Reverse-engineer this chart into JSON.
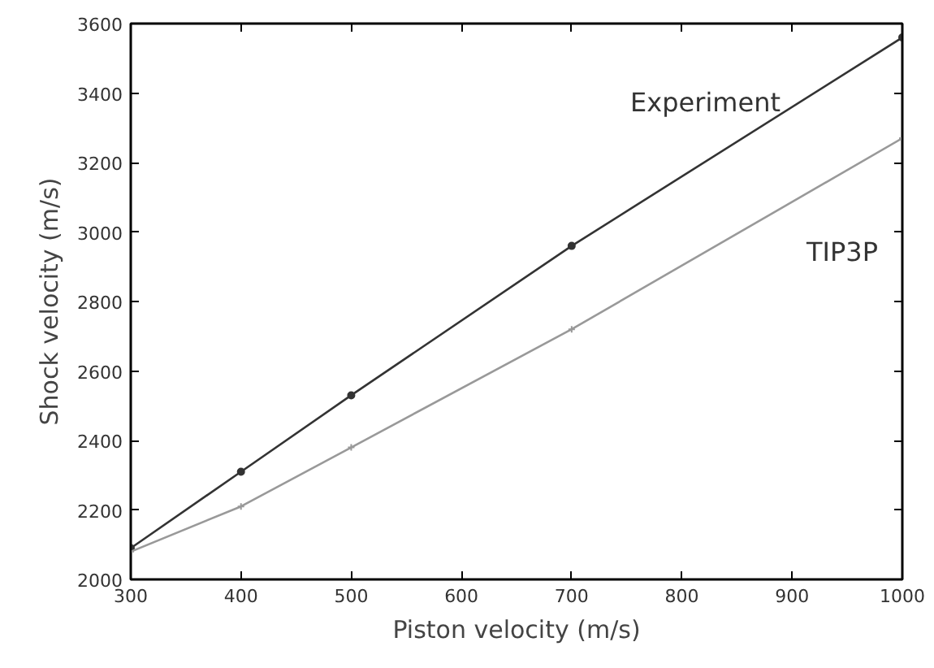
{
  "chart_data": {
    "type": "line",
    "xlabel": "Piston velocity (m/s)",
    "ylabel": "Shock velocity (m/s)",
    "x": [
      300,
      400,
      500,
      700,
      1000
    ],
    "series": [
      {
        "name": "Experiment",
        "color": "#333333",
        "marker": "circle",
        "values": [
          2090,
          2310,
          2530,
          2960,
          3560
        ]
      },
      {
        "name": "TIP3P",
        "color": "#999999",
        "marker": "cross",
        "values": [
          2080,
          2210,
          2380,
          2720,
          3270
        ]
      }
    ],
    "xlim": [
      300,
      1000
    ],
    "xticks": [
      300,
      400,
      500,
      600,
      700,
      800,
      900,
      1000
    ],
    "ylim": [
      2000,
      3600
    ],
    "yticks": [
      2000,
      2200,
      2400,
      2600,
      2800,
      3000,
      3200,
      3400,
      3600
    ],
    "grid": false,
    "legend": false,
    "line_style": "solid"
  }
}
